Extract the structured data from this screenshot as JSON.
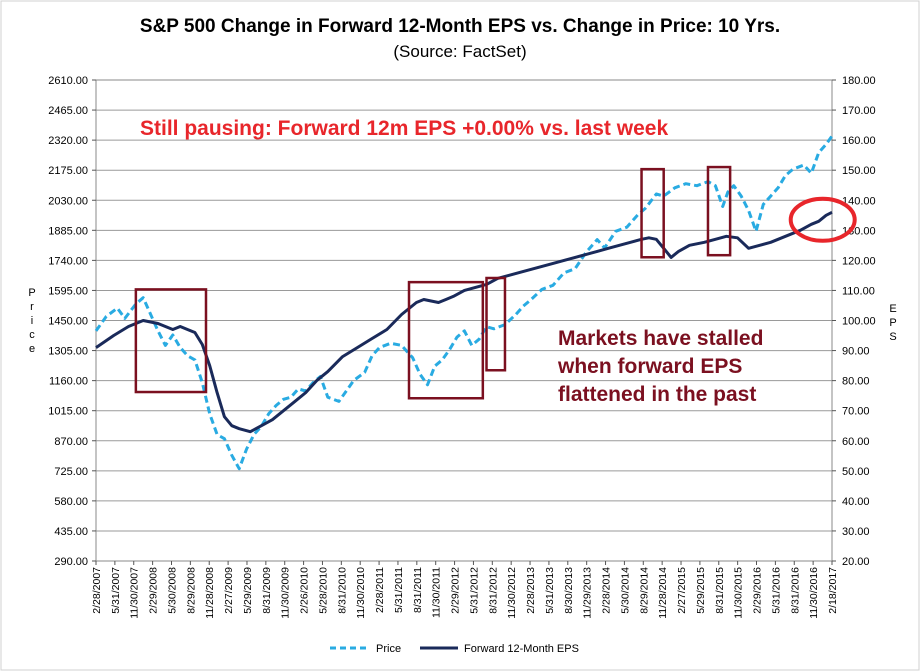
{
  "chart_data": {
    "type": "line",
    "title": "S&P 500 Change in Forward 12-Month EPS vs. Change in Price: 10 Yrs.",
    "subtitle": "(Source: FactSet)",
    "ylabel_left": "Price",
    "ylabel_right": "EPS",
    "ylim_left": [
      290,
      2610
    ],
    "ylim_right": [
      20,
      180
    ],
    "yticks_left": [
      "2610.00",
      "2465.00",
      "2320.00",
      "2175.00",
      "2030.00",
      "1885.00",
      "1740.00",
      "1595.00",
      "1450.00",
      "1305.00",
      "1160.00",
      "1015.00",
      "870.00",
      "725.00",
      "580.00",
      "435.00",
      "290.00"
    ],
    "yticks_right": [
      "180.00",
      "170.00",
      "160.00",
      "150.00",
      "140.00",
      "130.00",
      "120.00",
      "110.00",
      "100.00",
      "90.00",
      "80.00",
      "70.00",
      "60.00",
      "50.00",
      "40.00",
      "30.00",
      "20.00"
    ],
    "xticks": [
      "2/28/2007",
      "5/31/2007",
      "11/30/2007",
      "2/29/2008",
      "5/30/2008",
      "8/29/2008",
      "11/28/2008",
      "2/27/2009",
      "5/29/2009",
      "8/31/2009",
      "11/30/2009",
      "2/26/2010",
      "5/28/2010",
      "8/31/2010",
      "11/30/2010",
      "2/28/2011",
      "5/31/2011",
      "8/31/2011",
      "11/30/2011",
      "2/29/2012",
      "5/31/2012",
      "8/31/2012",
      "11/30/2012",
      "2/28/2013",
      "5/31/2013",
      "8/30/2013",
      "11/29/2013",
      "2/28/2014",
      "5/30/2014",
      "8/29/2014",
      "11/28/2014",
      "2/27/2015",
      "5/29/2015",
      "8/31/2015",
      "11/30/2015",
      "2/29/2016",
      "5/31/2016",
      "8/31/2016",
      "11/30/2016",
      "2/18/2017"
    ],
    "series": [
      {
        "name": "Price",
        "axis": "left",
        "color": "#29abe2",
        "style": "dashed",
        "x": [
          2007.16,
          2007.3,
          2007.45,
          2007.55,
          2007.7,
          2007.8,
          2007.9,
          2008.0,
          2008.1,
          2008.2,
          2008.3,
          2008.4,
          2008.5,
          2008.6,
          2008.7,
          2008.8,
          2008.9,
          2009.0,
          2009.1,
          2009.2,
          2009.3,
          2009.4,
          2009.5,
          2009.6,
          2009.7,
          2009.8,
          2009.9,
          2010.0,
          2010.1,
          2010.2,
          2010.3,
          2010.45,
          2010.55,
          2010.65,
          2010.8,
          2010.9,
          2011.0,
          2011.15,
          2011.3,
          2011.45,
          2011.55,
          2011.65,
          2011.75,
          2011.85,
          2011.95,
          2012.05,
          2012.15,
          2012.25,
          2012.35,
          2012.45,
          2012.55,
          2012.7,
          2012.85,
          2012.95,
          2013.05,
          2013.2,
          2013.35,
          2013.5,
          2013.65,
          2013.8,
          2013.95,
          2014.05,
          2014.2,
          2014.35,
          2014.5,
          2014.6,
          2014.75,
          2014.85,
          2015.0,
          2015.15,
          2015.3,
          2015.45,
          2015.55,
          2015.65,
          2015.72,
          2015.8,
          2015.9,
          2016.0,
          2016.1,
          2016.2,
          2016.3,
          2016.4,
          2016.5,
          2016.6,
          2016.75,
          2016.85,
          2016.95,
          2017.05,
          2017.13
        ],
        "values": [
          1400,
          1470,
          1510,
          1460,
          1530,
          1560,
          1480,
          1400,
          1330,
          1380,
          1320,
          1280,
          1260,
          1150,
          1000,
          900,
          880,
          800,
          735,
          830,
          900,
          940,
          1000,
          1040,
          1070,
          1080,
          1120,
          1110,
          1150,
          1180,
          1080,
          1060,
          1110,
          1160,
          1200,
          1280,
          1320,
          1340,
          1330,
          1270,
          1190,
          1140,
          1230,
          1260,
          1310,
          1370,
          1400,
          1330,
          1360,
          1420,
          1410,
          1430,
          1480,
          1520,
          1550,
          1600,
          1620,
          1680,
          1700,
          1780,
          1840,
          1800,
          1880,
          1900,
          1960,
          1990,
          2060,
          2050,
          2090,
          2110,
          2100,
          2120,
          2100,
          2000,
          2070,
          2100,
          2050,
          1980,
          1880,
          2010,
          2050,
          2090,
          2150,
          2180,
          2200,
          2160,
          2260,
          2300,
          2340
        ]
      },
      {
        "name": "Forward 12-Month EPS",
        "axis": "right",
        "color": "#1a2a5a",
        "style": "solid",
        "x": [
          2007.16,
          2007.4,
          2007.6,
          2007.8,
          2008.0,
          2008.1,
          2008.2,
          2008.3,
          2008.4,
          2008.5,
          2008.6,
          2008.7,
          2008.8,
          2008.9,
          2009.0,
          2009.1,
          2009.25,
          2009.4,
          2009.55,
          2009.7,
          2009.85,
          2010.0,
          2010.15,
          2010.3,
          2010.5,
          2010.7,
          2010.9,
          2011.1,
          2011.3,
          2011.5,
          2011.6,
          2011.7,
          2011.8,
          2011.9,
          2012.0,
          2012.15,
          2012.3,
          2012.45,
          2012.6,
          2012.75,
          2012.9,
          2013.05,
          2013.2,
          2013.35,
          2013.5,
          2013.65,
          2013.8,
          2013.95,
          2014.1,
          2014.25,
          2014.4,
          2014.55,
          2014.65,
          2014.75,
          2014.85,
          2014.95,
          2015.05,
          2015.2,
          2015.4,
          2015.55,
          2015.7,
          2015.85,
          2016.0,
          2016.15,
          2016.3,
          2016.5,
          2016.7,
          2016.85,
          2016.95,
          2017.05,
          2017.13
        ],
        "values": [
          91,
          95,
          98,
          100,
          99,
          98,
          97,
          98,
          97,
          96,
          92,
          85,
          76,
          68,
          65,
          64,
          63,
          65,
          67,
          70,
          73,
          76,
          80,
          83,
          88,
          91,
          94,
          97,
          102,
          106,
          107,
          106.5,
          106,
          107,
          108,
          110,
          111,
          112,
          114,
          115,
          116,
          117,
          118,
          119,
          120,
          121,
          122,
          123,
          124,
          125,
          126,
          127,
          127.5,
          127,
          124,
          121,
          123,
          125,
          126,
          127,
          128,
          127.5,
          124,
          125,
          126,
          128,
          130,
          132,
          133,
          135,
          136
        ]
      }
    ],
    "annotations": [
      "Still pausing: Forward 12m EPS +0.00% vs. last week",
      "Markets have stalled",
      "when forward EPS",
      "flattened in the past"
    ],
    "highlight_boxes": [
      {
        "x_start": 2007.7,
        "x_end": 2008.65,
        "y_top": 1600,
        "y_bottom": 1105
      },
      {
        "x_start": 2011.4,
        "x_end": 2012.4,
        "y_top": 1635,
        "y_bottom": 1075
      },
      {
        "x_start": 2012.45,
        "x_end": 2012.7,
        "y_top": 1655,
        "y_bottom": 1210
      },
      {
        "x_start": 2014.55,
        "x_end": 2014.85,
        "y_top": 2180,
        "y_bottom": 1755
      },
      {
        "x_start": 2015.45,
        "x_end": 2015.75,
        "y_top": 2190,
        "y_bottom": 1765
      }
    ],
    "highlight_circle": {
      "x": 2016.95,
      "y_right": 133.5
    },
    "grid": true,
    "legend_position": "bottom"
  }
}
